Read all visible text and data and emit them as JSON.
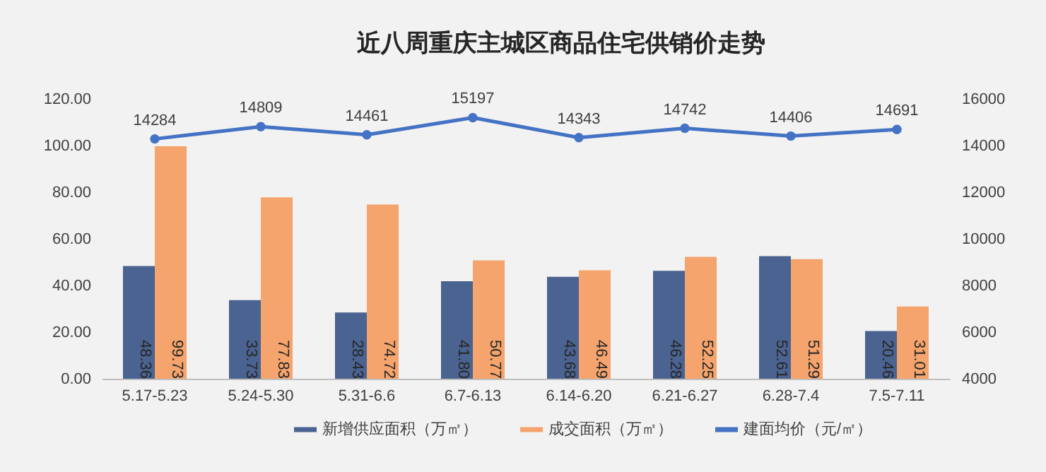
{
  "chart_data": {
    "type": "bar",
    "title": "近八周重庆主城区商品住宅供销价走势",
    "categories": [
      "5.17-5.23",
      "5.24-5.30",
      "5.31-6.6",
      "6.7-6.13",
      "6.14-6.20",
      "6.21-6.27",
      "6.28-7.4",
      "7.5-7.11"
    ],
    "series": [
      {
        "name": "新增供应面积（万㎡）",
        "color": "#4a6390",
        "values": [
          48.36,
          33.73,
          28.43,
          41.8,
          43.68,
          46.28,
          52.61,
          20.46
        ],
        "value_labels": [
          "48.36",
          "33.73",
          "28.43",
          "41.80",
          "43.68",
          "46.28",
          "52.61",
          "20.46"
        ]
      },
      {
        "name": "成交面积（万㎡）",
        "color": "#f4a46c",
        "values": [
          99.73,
          77.83,
          74.72,
          50.77,
          46.49,
          52.25,
          51.29,
          31.01
        ],
        "value_labels": [
          "99.73",
          "77.83",
          "74.72",
          "50.77",
          "46.49",
          "52.25",
          "51.29",
          "31.01"
        ]
      },
      {
        "name": "建面均价（元/㎡）",
        "type": "line",
        "axis": "y2",
        "marker": "circle",
        "color": "#4472c4",
        "values": [
          14284,
          14809,
          14461,
          15197,
          14343,
          14742,
          14406,
          14691
        ],
        "value_labels": [
          "14284",
          "14809",
          "14461",
          "15197",
          "14343",
          "14742",
          "14406",
          "14691"
        ]
      }
    ],
    "ylim": [
      0,
      120
    ],
    "yticks": [
      {
        "value": 0,
        "label": "0.00"
      },
      {
        "value": 20,
        "label": "20.00"
      },
      {
        "value": 40,
        "label": "40.00"
      },
      {
        "value": 60,
        "label": "60.00"
      },
      {
        "value": 80,
        "label": "80.00"
      },
      {
        "value": 100,
        "label": "100.00"
      },
      {
        "value": 120,
        "label": "120.00"
      }
    ],
    "y2lim": [
      4000,
      16000
    ],
    "y2ticks": [
      4000,
      6000,
      8000,
      10000,
      12000,
      14000,
      16000
    ],
    "legend": "bottom",
    "grid": false
  }
}
